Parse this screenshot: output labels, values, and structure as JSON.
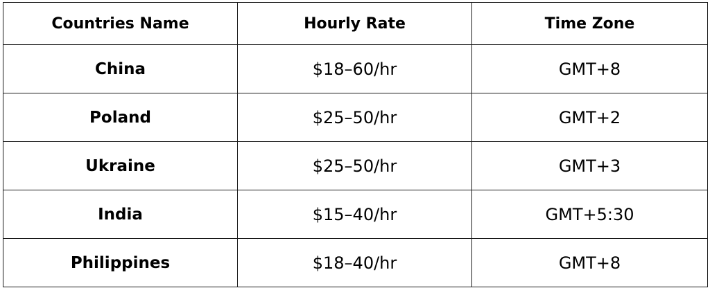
{
  "table": {
    "headers": [
      "Countries Name",
      "Hourly Rate",
      "Time Zone"
    ],
    "rows": [
      {
        "country": "China",
        "rate": "$18–60/hr",
        "timezone": "GMT+8"
      },
      {
        "country": "Poland",
        "rate": "$25–50/hr",
        "timezone": "GMT+2"
      },
      {
        "country": "Ukraine",
        "rate": "$25–50/hr",
        "timezone": "GMT+3"
      },
      {
        "country": "India",
        "rate": "$15–40/hr",
        "timezone": "GMT+5:30"
      },
      {
        "country": "Philippines",
        "rate": "$18–40/hr",
        "timezone": "GMT+8"
      }
    ]
  }
}
